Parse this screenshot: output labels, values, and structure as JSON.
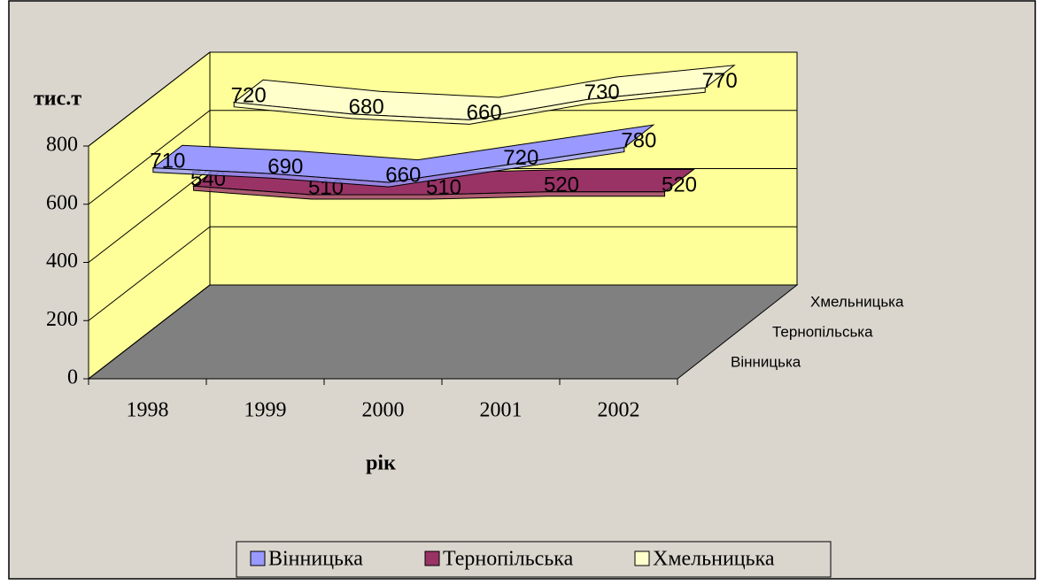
{
  "chart_data": {
    "type": "line3d",
    "y_label": "тис.т",
    "x_label": "рік",
    "categories": [
      "1998",
      "1999",
      "2000",
      "2001",
      "2002"
    ],
    "series": [
      {
        "name": "Вінницька",
        "color": "#9999ff",
        "values": [
          710,
          690,
          660,
          720,
          780
        ]
      },
      {
        "name": "Тернопільська",
        "color": "#993366",
        "values": [
          540,
          510,
          510,
          520,
          520
        ]
      },
      {
        "name": "Хмельницька",
        "color": "#ffffcc",
        "values": [
          720,
          680,
          660,
          730,
          770
        ]
      }
    ],
    "ylim": [
      0,
      800
    ],
    "yticks": [
      0,
      200,
      400,
      600,
      800
    ],
    "grid": true,
    "legend": "bottom"
  }
}
